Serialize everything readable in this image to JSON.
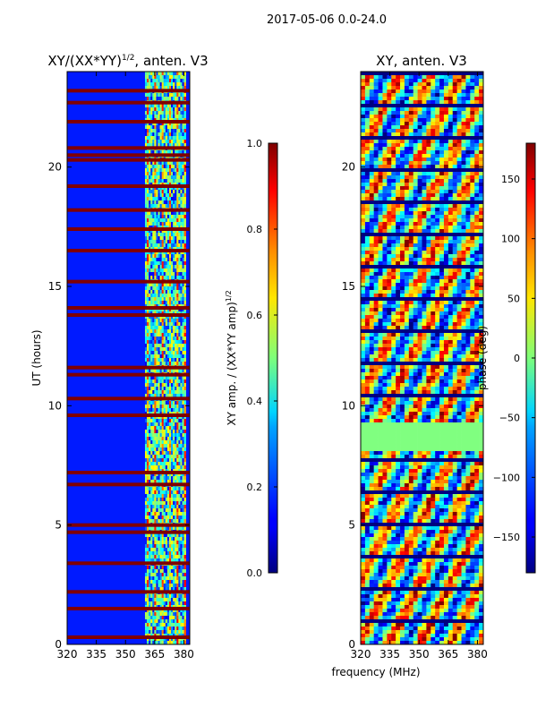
{
  "suptitle": "2017-05-06 0.0-24.0",
  "shared_xlabel": "frequency (MHz)",
  "chart_data": [
    {
      "type": "heatmap",
      "title": "XY/(XX*YY)",
      "title_superscript": "1/2",
      "title_suffix": ", anten. V3",
      "xlabel": "",
      "ylabel": "UT (hours)",
      "xlim": [
        320,
        383
      ],
      "ylim": [
        0,
        24
      ],
      "xticks": [
        "320",
        "335",
        "350",
        "365",
        "380"
      ],
      "yticks": [
        "0",
        "5",
        "10",
        "15",
        "20"
      ],
      "colormap": "jet",
      "background_value": 0.15,
      "bright_band_mhz": [
        360,
        381
      ],
      "saturated_rows_ut": [
        0.3,
        1.5,
        2.2,
        3.4,
        4.7,
        5.0,
        6.7,
        7.2,
        9.6,
        10.3,
        11.3,
        11.6,
        13.8,
        14.1,
        15.2,
        16.5,
        17.4,
        18.2,
        19.2,
        20.3,
        20.5,
        20.8,
        21.9,
        22.7,
        23.2
      ],
      "colorbar": {
        "label": "XY amp. / (XX*YY amp)",
        "label_superscript": "1/2",
        "range": [
          0.0,
          1.0
        ],
        "ticks": [
          "0.0",
          "0.2",
          "0.4",
          "0.6",
          "0.8",
          "1.0"
        ]
      }
    },
    {
      "type": "heatmap",
      "title": "XY, anten. V3",
      "xlabel": "frequency (MHz)",
      "ylabel": "",
      "xlim": [
        320,
        383
      ],
      "ylim": [
        0,
        24
      ],
      "xticks": [
        "320",
        "335",
        "350",
        "365",
        "380"
      ],
      "yticks": [
        "0",
        "5",
        "10",
        "15",
        "20"
      ],
      "colormap": "jet",
      "flat_band_ut": [
        8.1,
        9.3
      ],
      "colorbar": {
        "label": "phase (deg)",
        "range": [
          -180,
          180
        ],
        "ticks": [
          "150",
          "100",
          "50",
          "0",
          "−50",
          "−100",
          "−150"
        ]
      }
    }
  ]
}
